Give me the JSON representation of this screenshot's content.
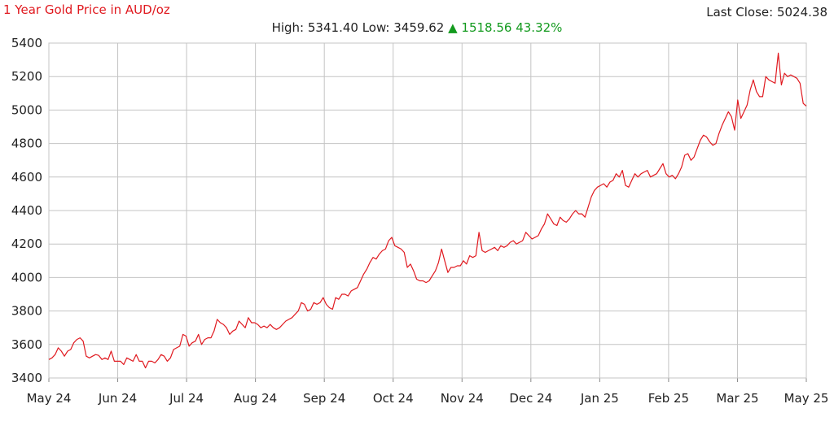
{
  "header": {
    "title": "1 Year Gold Price in AUD/oz",
    "last_close_label": "Last Close:",
    "last_close_value": "5024.38",
    "high_label": "High:",
    "high_value": "5341.40",
    "low_label": "Low:",
    "low_value": "3459.62",
    "change_arrow": "▲",
    "change_value": "1518.56",
    "change_percent": "43.32%"
  },
  "colors": {
    "line": "#e0191f",
    "grid": "#c4c4c4",
    "up": "#139a1e"
  },
  "chart_data": {
    "type": "line",
    "title": "1 Year Gold Price in AUD/oz",
    "xlabel": "",
    "ylabel": "",
    "x_ticks": [
      "May 24",
      "Jun 24",
      "Jul 24",
      "Aug 24",
      "Sep 24",
      "Oct 24",
      "Nov 24",
      "Dec 24",
      "Jan 25",
      "Feb 25",
      "Mar 25",
      "May 25"
    ],
    "y_ticks": [
      3400,
      3600,
      3800,
      4000,
      4200,
      4400,
      4600,
      4800,
      5000,
      5200,
      5400
    ],
    "ylim": [
      3400,
      5400
    ],
    "grid": true,
    "legend": "none",
    "series": [
      {
        "values": [
          3510,
          3520,
          3540,
          3580,
          3560,
          3530,
          3560,
          3570,
          3610,
          3630,
          3640,
          3620,
          3530,
          3520,
          3530,
          3540,
          3535,
          3510,
          3520,
          3510,
          3560,
          3500,
          3500,
          3500,
          3480,
          3520,
          3510,
          3500,
          3540,
          3500,
          3500,
          3460,
          3500,
          3500,
          3490,
          3510,
          3540,
          3530,
          3500,
          3520,
          3570,
          3580,
          3590,
          3660,
          3650,
          3590,
          3610,
          3620,
          3660,
          3600,
          3630,
          3640,
          3640,
          3680,
          3750,
          3730,
          3720,
          3700,
          3660,
          3680,
          3690,
          3740,
          3720,
          3700,
          3760,
          3730,
          3730,
          3720,
          3700,
          3710,
          3700,
          3720,
          3700,
          3690,
          3700,
          3720,
          3740,
          3750,
          3760,
          3780,
          3800,
          3850,
          3840,
          3800,
          3810,
          3850,
          3840,
          3850,
          3880,
          3840,
          3820,
          3810,
          3880,
          3870,
          3900,
          3900,
          3890,
          3920,
          3930,
          3940,
          3980,
          4020,
          4050,
          4090,
          4120,
          4110,
          4140,
          4160,
          4170,
          4220,
          4240,
          4190,
          4180,
          4170,
          4150,
          4060,
          4080,
          4040,
          3990,
          3980,
          3980,
          3970,
          3980,
          4010,
          4040,
          4090,
          4170,
          4100,
          4030,
          4060,
          4060,
          4070,
          4070,
          4100,
          4080,
          4130,
          4120,
          4130,
          4270,
          4160,
          4150,
          4160,
          4170,
          4180,
          4160,
          4190,
          4180,
          4190,
          4210,
          4220,
          4200,
          4210,
          4220,
          4270,
          4250,
          4230,
          4240,
          4250,
          4290,
          4320,
          4380,
          4350,
          4320,
          4310,
          4360,
          4340,
          4330,
          4350,
          4380,
          4400,
          4380,
          4380,
          4360,
          4420,
          4480,
          4520,
          4540,
          4550,
          4560,
          4540,
          4570,
          4580,
          4620,
          4600,
          4640,
          4550,
          4540,
          4580,
          4620,
          4600,
          4620,
          4630,
          4640,
          4600,
          4610,
          4620,
          4650,
          4680,
          4620,
          4600,
          4610,
          4590,
          4620,
          4660,
          4730,
          4740,
          4700,
          4720,
          4770,
          4820,
          4850,
          4840,
          4810,
          4790,
          4800,
          4860,
          4910,
          4950,
          4990,
          4960,
          4880,
          5060,
          4950,
          4990,
          5030,
          5120,
          5180,
          5110,
          5080,
          5080,
          5200,
          5180,
          5170,
          5160,
          5340,
          5150,
          5220,
          5200,
          5210,
          5200,
          5190,
          5160,
          5040,
          5024
        ]
      }
    ]
  }
}
